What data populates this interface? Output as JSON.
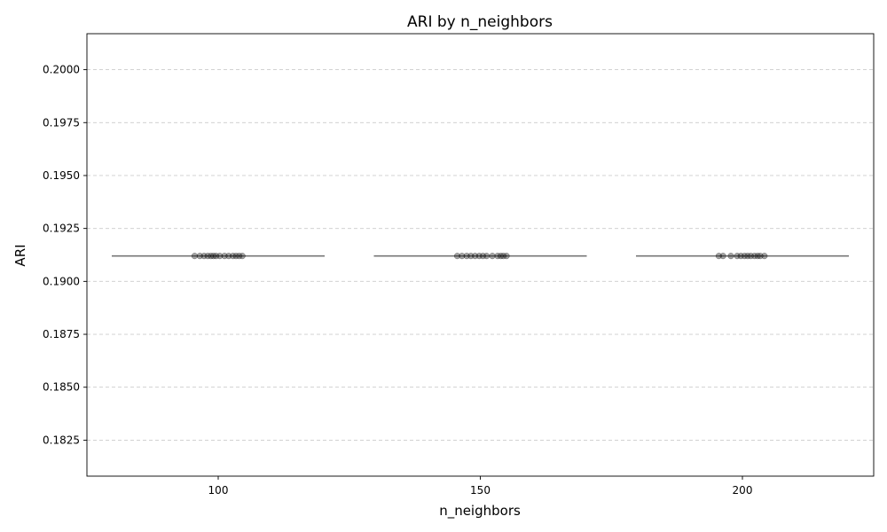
{
  "chart_data": {
    "type": "box",
    "title": "ARI by n_neighbors",
    "xlabel": "n_neighbors",
    "ylabel": "ARI",
    "categories": [
      "100",
      "150",
      "200"
    ],
    "y_ticks": [
      "0.1825",
      "0.1850",
      "0.1875",
      "0.1900",
      "0.1925",
      "0.1950",
      "0.1975",
      "0.2000"
    ],
    "y_tick_values": [
      0.1825,
      0.185,
      0.1875,
      0.19,
      0.1925,
      0.195,
      0.1975,
      0.2
    ],
    "ylim": [
      0.1808,
      0.2017
    ],
    "grid": "y",
    "series": [
      {
        "category": "100",
        "median": 0.1912,
        "points_x": [
          95.5,
          96.5,
          97.3,
          98.0,
          98.6,
          99.1,
          99.6,
          100.3,
          101.2,
          102.0,
          102.8,
          103.4,
          104.0,
          104.6
        ],
        "points_y": [
          0.1912,
          0.1912,
          0.1912,
          0.1912,
          0.1912,
          0.1912,
          0.1912,
          0.1912,
          0.1912,
          0.1912,
          0.1912,
          0.1912,
          0.1912,
          0.1912
        ]
      },
      {
        "category": "150",
        "median": 0.1912,
        "points_x": [
          145.6,
          146.5,
          147.4,
          148.2,
          149.0,
          149.8,
          150.5,
          151.2,
          152.3,
          153.3,
          153.9,
          154.4,
          155.0
        ],
        "points_y": [
          0.1912,
          0.1912,
          0.1912,
          0.1912,
          0.1912,
          0.1912,
          0.1912,
          0.1912,
          0.1912,
          0.1912,
          0.1912,
          0.1912,
          0.1912
        ]
      },
      {
        "category": "200",
        "median": 0.1912,
        "points_x": [
          195.5,
          196.3,
          197.8,
          199.0,
          199.7,
          200.4,
          201.0,
          201.6,
          202.3,
          202.9,
          203.4,
          204.2
        ],
        "points_y": [
          0.1912,
          0.1912,
          0.1912,
          0.1912,
          0.1912,
          0.1912,
          0.1912,
          0.1912,
          0.1912,
          0.1912,
          0.1912,
          0.1912
        ]
      }
    ]
  }
}
